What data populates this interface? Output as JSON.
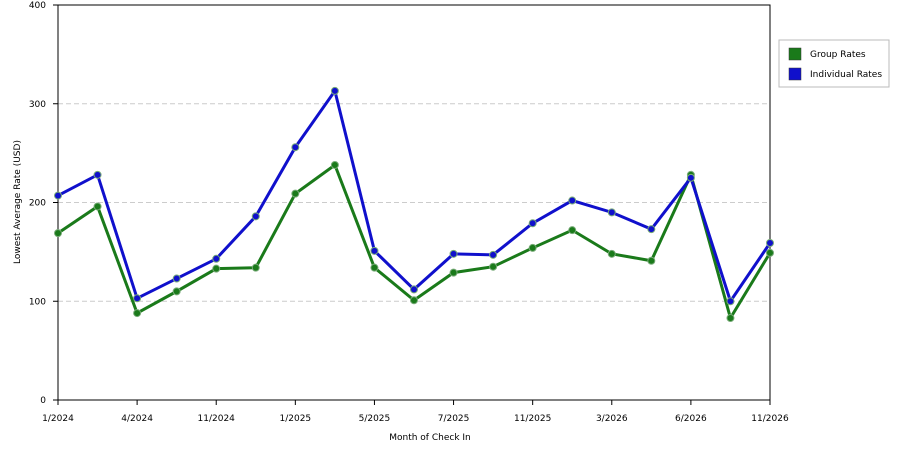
{
  "chart_data": {
    "type": "line",
    "x_label": "Month of Check In",
    "y_label": "Lowest Average Rate (USD)",
    "categories": [
      "1/2024",
      null,
      "4/2024",
      null,
      "11/2024",
      null,
      "1/2025",
      null,
      "5/2025",
      null,
      "7/2025",
      null,
      "11/2025",
      null,
      "3/2026",
      null,
      "6/2026",
      null,
      "11/2026"
    ],
    "series": [
      {
        "name": "Group Rates",
        "color": "#1a7a1a",
        "values": [
          169,
          196,
          88,
          110,
          133,
          134,
          209,
          238,
          134,
          101,
          129,
          135,
          154,
          172,
          148,
          141,
          228,
          83,
          149
        ]
      },
      {
        "name": "Individual Rates",
        "color": "#1010cc",
        "values": [
          207,
          228,
          103,
          123,
          143,
          186,
          256,
          313,
          151,
          112,
          148,
          147,
          179,
          202,
          190,
          173,
          225,
          100,
          159
        ]
      }
    ],
    "ylim": [
      0,
      400
    ],
    "yticks": [
      0,
      100,
      200,
      300,
      400
    ],
    "grid": true,
    "legend": "right"
  }
}
